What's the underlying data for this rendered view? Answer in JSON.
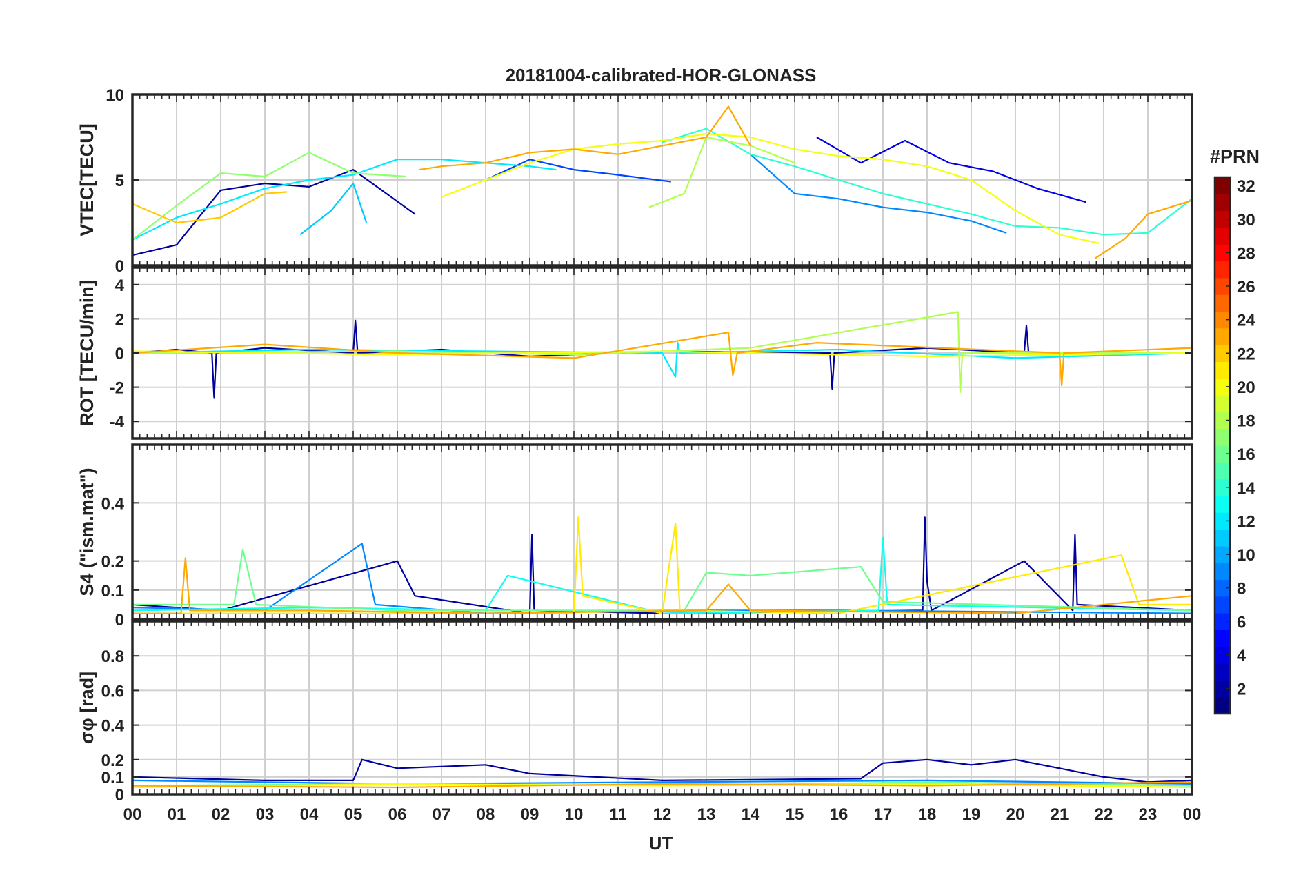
{
  "figure": {
    "title": "20181004-calibrated-HOR-GLONASS",
    "xlabel": "UT"
  },
  "colorbar": {
    "label": "#PRN",
    "ticks": [
      2,
      4,
      6,
      8,
      10,
      12,
      14,
      16,
      18,
      20,
      22,
      24,
      26,
      28,
      30,
      32
    ],
    "range": [
      1,
      32
    ],
    "colormap": "jet"
  },
  "chart_data": [
    {
      "type": "line",
      "panel": "VTEC",
      "ylabel": "VTEC[TECU]",
      "ylim": [
        0,
        10
      ],
      "yticks": [
        0,
        5,
        10
      ],
      "xlim": [
        0,
        24
      ],
      "xtick_labels": [
        "00",
        "01",
        "02",
        "03",
        "04",
        "05",
        "06",
        "07",
        "08",
        "09",
        "10",
        "11",
        "12",
        "13",
        "14",
        "15",
        "16",
        "17",
        "18",
        "19",
        "20",
        "21",
        "22",
        "23",
        "00"
      ],
      "grid": true,
      "series": [
        {
          "prn": 2,
          "x": [
            0,
            1,
            2,
            3,
            4,
            5,
            6.4
          ],
          "y": [
            0.6,
            1.2,
            4.4,
            4.8,
            4.6,
            5.6,
            3.0
          ]
        },
        {
          "prn": 4,
          "x": [
            15.5,
            16.5,
            17.5,
            18.5,
            19.5,
            20.5,
            21.6
          ],
          "y": [
            7.5,
            6.0,
            7.3,
            6.0,
            5.5,
            4.5,
            3.7
          ]
        },
        {
          "prn": 7,
          "x": [
            8,
            9,
            10,
            11,
            12.2
          ],
          "y": [
            5.0,
            6.2,
            5.6,
            5.3,
            4.9
          ]
        },
        {
          "prn": 9,
          "x": [
            14,
            15,
            16,
            17,
            18,
            19,
            19.8
          ],
          "y": [
            6.5,
            4.2,
            3.9,
            3.4,
            3.1,
            2.6,
            1.9
          ]
        },
        {
          "prn": 11,
          "x": [
            3.8,
            4.5,
            5.0,
            5.3
          ],
          "y": [
            1.8,
            3.2,
            4.8,
            2.5
          ]
        },
        {
          "prn": 12,
          "x": [
            0,
            1,
            2,
            3,
            4,
            5,
            6,
            7,
            8,
            9,
            9.6
          ],
          "y": [
            1.5,
            2.8,
            3.6,
            4.5,
            5.0,
            5.3,
            6.2,
            6.2,
            6.0,
            5.8,
            5.6
          ]
        },
        {
          "prn": 14,
          "x": [
            12,
            13,
            14,
            15,
            16,
            17,
            18,
            19,
            20,
            21,
            22,
            23,
            24
          ],
          "y": [
            7.2,
            8.0,
            6.5,
            5.8,
            5.0,
            4.2,
            3.6,
            3.0,
            2.3,
            2.2,
            1.8,
            1.9,
            3.9
          ]
        },
        {
          "prn": 17,
          "x": [
            0,
            1,
            2,
            3,
            4,
            5,
            6.2
          ],
          "y": [
            1.5,
            3.5,
            5.4,
            5.2,
            6.6,
            5.4,
            5.2
          ]
        },
        {
          "prn": 18,
          "x": [
            11.7,
            12.5,
            13.0,
            14,
            15
          ],
          "y": [
            3.4,
            4.2,
            7.5,
            7.0,
            6.0
          ]
        },
        {
          "prn": 20,
          "x": [
            7,
            8,
            9,
            10,
            11,
            12,
            13,
            14,
            15,
            16,
            17,
            18,
            19,
            20,
            21,
            21.9
          ],
          "y": [
            4.0,
            5.0,
            6.0,
            6.8,
            7.1,
            7.3,
            7.7,
            7.5,
            6.8,
            6.4,
            6.2,
            5.8,
            5.0,
            3.2,
            1.8,
            1.3
          ]
        },
        {
          "prn": 22,
          "x": [
            0,
            1,
            2,
            3,
            3.5
          ],
          "y": [
            3.6,
            2.5,
            2.8,
            4.2,
            4.3
          ]
        },
        {
          "prn": 23,
          "x": [
            6.5,
            7,
            8,
            9,
            10,
            11,
            12,
            13,
            13.5,
            14
          ],
          "y": [
            5.6,
            5.8,
            6.0,
            6.6,
            6.8,
            6.5,
            7.0,
            7.5,
            9.3,
            7.0
          ]
        },
        {
          "prn": 23,
          "x": [
            21.8,
            22.5,
            23,
            24
          ],
          "y": [
            0.4,
            1.6,
            3.0,
            3.8
          ]
        }
      ]
    },
    {
      "type": "line",
      "panel": "ROT",
      "ylabel": "ROT [TECU/min]",
      "ylim": [
        -5,
        5
      ],
      "yticks": [
        -4,
        -2,
        0,
        2,
        4
      ],
      "xlim": [
        0,
        24
      ],
      "grid": true,
      "series": [
        {
          "prn": 2,
          "x": [
            0,
            1,
            1.8,
            1.85,
            1.9,
            3,
            5,
            5.05,
            5.1,
            7,
            9,
            12,
            15.8,
            15.85,
            15.9,
            18,
            20.2,
            20.25,
            20.3,
            22
          ],
          "y": [
            0,
            0.2,
            0,
            -2.6,
            0,
            0.3,
            0,
            1.9,
            0,
            0.2,
            -0.2,
            0.1,
            0,
            -2.1,
            0,
            0.3,
            0,
            1.6,
            0,
            0
          ]
        },
        {
          "prn": 12,
          "x": [
            0,
            4,
            8,
            12,
            12.3,
            12.35,
            12.4,
            16,
            20,
            24
          ],
          "y": [
            0,
            0.2,
            0.1,
            0,
            -1.4,
            0.6,
            0,
            0.2,
            -0.3,
            0
          ]
        },
        {
          "prn": 18,
          "x": [
            0,
            6,
            10,
            14,
            18.7,
            18.75,
            18.8,
            24
          ],
          "y": [
            0,
            0.1,
            -0.1,
            0.3,
            2.4,
            -2.3,
            0,
            0
          ]
        },
        {
          "prn": 20,
          "x": [
            0,
            6,
            12,
            18,
            24
          ],
          "y": [
            0.1,
            -0.1,
            0.1,
            -0.2,
            0
          ]
        },
        {
          "prn": 23,
          "x": [
            0,
            3,
            6,
            10,
            13.5,
            13.6,
            13.7,
            15.5,
            21,
            21.05,
            21.1,
            24
          ],
          "y": [
            0,
            0.5,
            0,
            -0.3,
            1.2,
            -1.3,
            0,
            0.6,
            0,
            -1.9,
            0,
            0.3
          ]
        }
      ]
    },
    {
      "type": "line",
      "panel": "S4",
      "ylabel": "S4 (\"ism.mat\")",
      "ylim": [
        0,
        0.6
      ],
      "yticks": [
        0,
        0.1,
        0.2,
        0.4
      ],
      "xlim": [
        0,
        24
      ],
      "grid": true,
      "series": [
        {
          "prn": 2,
          "x": [
            0,
            2,
            6,
            6.4,
            9,
            9.05,
            9.1,
            12,
            17.9,
            17.95,
            18.0,
            18.1,
            20.2,
            21.3,
            21.35,
            21.4,
            24
          ],
          "y": [
            0.05,
            0.03,
            0.2,
            0.08,
            0.02,
            0.29,
            0.03,
            0.02,
            0.03,
            0.35,
            0.13,
            0.03,
            0.2,
            0.03,
            0.29,
            0.05,
            0.03
          ]
        },
        {
          "prn": 9,
          "x": [
            0,
            3,
            5.2,
            5.5,
            8,
            12,
            16,
            24
          ],
          "y": [
            0.04,
            0.03,
            0.26,
            0.05,
            0.02,
            0.03,
            0.03,
            0.02
          ]
        },
        {
          "prn": 13,
          "x": [
            0,
            4,
            8,
            8.5,
            12,
            16.9,
            17,
            17.1,
            24
          ],
          "y": [
            0.03,
            0.04,
            0.03,
            0.15,
            0.02,
            0.03,
            0.28,
            0.05,
            0.03
          ]
        },
        {
          "prn": 16,
          "x": [
            0,
            2.3,
            2.5,
            2.8,
            6,
            12.5,
            13,
            14,
            16.5,
            17,
            24
          ],
          "y": [
            0.05,
            0.05,
            0.24,
            0.05,
            0.03,
            0.03,
            0.16,
            0.15,
            0.18,
            0.06,
            0.03
          ]
        },
        {
          "prn": 21,
          "x": [
            0,
            6,
            10,
            10.1,
            10.2,
            12,
            12.3,
            12.4,
            16,
            22.4,
            22.8,
            24
          ],
          "y": [
            0.02,
            0.02,
            0.02,
            0.35,
            0.08,
            0.02,
            0.33,
            0.03,
            0.02,
            0.22,
            0.05,
            0.05
          ]
        },
        {
          "prn": 23,
          "x": [
            0,
            1.1,
            1.2,
            1.3,
            4,
            8,
            13,
            13.5,
            14,
            20,
            24
          ],
          "y": [
            0.02,
            0.02,
            0.21,
            0.03,
            0.03,
            0.02,
            0.03,
            0.12,
            0.03,
            0.02,
            0.08
          ]
        }
      ]
    },
    {
      "type": "line",
      "panel": "sigma_phi",
      "ylabel": "σφ [rad]",
      "ylim": [
        0,
        1
      ],
      "yticks": [
        0,
        0.1,
        0.2,
        0.4,
        0.6,
        0.8
      ],
      "xlim": [
        0,
        24
      ],
      "grid": true,
      "series": [
        {
          "prn": 2,
          "x": [
            0,
            3,
            5,
            5.2,
            6,
            7,
            8,
            9,
            12,
            16.5,
            17,
            18,
            19,
            20,
            21,
            22,
            23,
            24
          ],
          "y": [
            0.1,
            0.08,
            0.08,
            0.2,
            0.15,
            0.16,
            0.17,
            0.12,
            0.08,
            0.09,
            0.18,
            0.2,
            0.17,
            0.2,
            0.15,
            0.1,
            0.07,
            0.08
          ]
        },
        {
          "prn": 9,
          "x": [
            0,
            6,
            12,
            18,
            24
          ],
          "y": [
            0.08,
            0.06,
            0.07,
            0.08,
            0.06
          ]
        },
        {
          "prn": 16,
          "x": [
            0,
            6,
            12,
            18,
            24
          ],
          "y": [
            0.05,
            0.06,
            0.05,
            0.07,
            0.05
          ]
        },
        {
          "prn": 20,
          "x": [
            0,
            6,
            12,
            18,
            24
          ],
          "y": [
            0.04,
            0.06,
            0.05,
            0.06,
            0.04
          ]
        },
        {
          "prn": 23,
          "x": [
            0,
            6,
            12,
            18,
            24
          ],
          "y": [
            0.05,
            0.04,
            0.06,
            0.05,
            0.07
          ]
        }
      ]
    }
  ]
}
